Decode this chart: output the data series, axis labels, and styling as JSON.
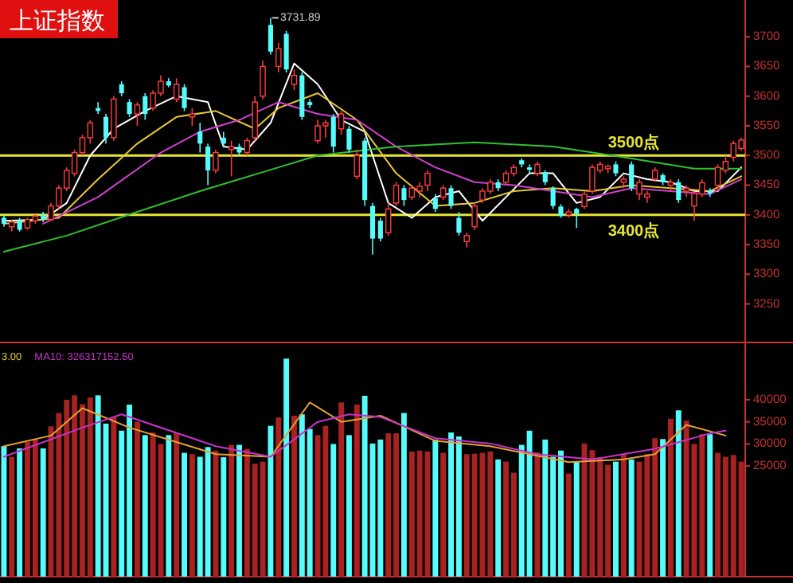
{
  "chart_data": [
    {
      "type": "candlestick",
      "title": "上证指数",
      "categories": [
        null,
        null,
        null,
        null,
        null,
        null,
        null,
        null,
        null,
        null,
        null,
        null,
        null,
        null,
        null,
        null,
        null,
        null,
        null,
        null,
        null,
        null,
        null,
        null,
        null,
        null,
        null,
        null,
        null,
        null,
        null,
        null,
        null,
        null,
        null,
        null,
        null,
        null,
        null,
        null,
        null,
        null,
        null,
        null,
        null,
        null,
        null,
        null,
        null,
        null,
        null,
        null,
        null,
        null,
        null,
        null,
        null,
        null,
        null,
        null,
        null,
        null,
        null,
        null,
        null,
        null,
        null,
        null,
        null,
        null,
        null,
        null,
        null,
        null,
        null,
        null,
        null,
        null,
        null,
        null,
        null,
        null,
        null,
        null,
        null,
        null,
        null,
        null,
        null,
        null,
        null,
        null,
        null,
        null,
        null
      ],
      "ohlc": [
        [
          3395,
          3400,
          3380,
          3385
        ],
        [
          3380,
          3392,
          3372,
          3388
        ],
        [
          3390,
          3395,
          3372,
          3375
        ],
        [
          3378,
          3395,
          3375,
          3392
        ],
        [
          3390,
          3400,
          3385,
          3398
        ],
        [
          3400,
          3405,
          3388,
          3392
        ],
        [
          3392,
          3420,
          3390,
          3415
        ],
        [
          3415,
          3450,
          3410,
          3445
        ],
        [
          3445,
          3480,
          3440,
          3475
        ],
        [
          3470,
          3510,
          3465,
          3505
        ],
        [
          3505,
          3535,
          3500,
          3530
        ],
        [
          3530,
          3560,
          3520,
          3555
        ],
        [
          3580,
          3590,
          3570,
          3575
        ],
        [
          3565,
          3570,
          3520,
          3530
        ],
        [
          3530,
          3600,
          3525,
          3595
        ],
        [
          3620,
          3625,
          3600,
          3605
        ],
        [
          3590,
          3595,
          3565,
          3570
        ],
        [
          3570,
          3590,
          3550,
          3585
        ],
        [
          3600,
          3605,
          3560,
          3570
        ],
        [
          3580,
          3610,
          3575,
          3605
        ],
        [
          3605,
          3635,
          3600,
          3625
        ],
        [
          3625,
          3630,
          3615,
          3618
        ],
        [
          3595,
          3630,
          3590,
          3620
        ],
        [
          3615,
          3620,
          3575,
          3580
        ],
        [
          3565,
          3580,
          3550,
          3570
        ],
        [
          3540,
          3555,
          3505,
          3520
        ],
        [
          3515,
          3520,
          3450,
          3475
        ],
        [
          3475,
          3510,
          3470,
          3505
        ],
        [
          3530,
          3540,
          3515,
          3520
        ],
        [
          3510,
          3525,
          3465,
          3515
        ],
        [
          3515,
          3520,
          3500,
          3505
        ],
        [
          3505,
          3530,
          3500,
          3525
        ],
        [
          3530,
          3600,
          3525,
          3590
        ],
        [
          3600,
          3660,
          3595,
          3650
        ],
        [
          3720,
          3731.89,
          3670,
          3675
        ],
        [
          3650,
          3690,
          3640,
          3680
        ],
        [
          3705,
          3710,
          3640,
          3645
        ],
        [
          3620,
          3645,
          3610,
          3635
        ],
        [
          3635,
          3640,
          3560,
          3565
        ],
        [
          3590,
          3595,
          3580,
          3585
        ],
        [
          3525,
          3560,
          3520,
          3550
        ],
        [
          3550,
          3560,
          3530,
          3555
        ],
        [
          3565,
          3570,
          3505,
          3515
        ],
        [
          3545,
          3575,
          3535,
          3570
        ],
        [
          3545,
          3550,
          3505,
          3510
        ],
        [
          3465,
          3510,
          3460,
          3500
        ],
        [
          3525,
          3530,
          3415,
          3425
        ],
        [
          3415,
          3420,
          3333,
          3360
        ],
        [
          3390,
          3395,
          3355,
          3360
        ],
        [
          3370,
          3420,
          3365,
          3410
        ],
        [
          3420,
          3455,
          3415,
          3450
        ],
        [
          3445,
          3450,
          3415,
          3425
        ],
        [
          3430,
          3450,
          3425,
          3445
        ],
        [
          3440,
          3455,
          3430,
          3448
        ],
        [
          3450,
          3475,
          3440,
          3470
        ],
        [
          3428,
          3435,
          3405,
          3410
        ],
        [
          3430,
          3450,
          3425,
          3445
        ],
        [
          3445,
          3450,
          3410,
          3415
        ],
        [
          3395,
          3405,
          3365,
          3370
        ],
        [
          3355,
          3370,
          3345,
          3365
        ],
        [
          3380,
          3420,
          3375,
          3415
        ],
        [
          3425,
          3445,
          3420,
          3440
        ],
        [
          3440,
          3460,
          3435,
          3455
        ],
        [
          3455,
          3460,
          3440,
          3445
        ],
        [
          3455,
          3475,
          3450,
          3470
        ],
        [
          3470,
          3485,
          3465,
          3480
        ],
        [
          3492,
          3495,
          3480,
          3485
        ],
        [
          3480,
          3485,
          3470,
          3476
        ],
        [
          3470,
          3490,
          3465,
          3485
        ],
        [
          3472,
          3475,
          3450,
          3455
        ],
        [
          3445,
          3448,
          3410,
          3415
        ],
        [
          3414,
          3418,
          3395,
          3398
        ],
        [
          3400,
          3410,
          3395,
          3405
        ],
        [
          3410,
          3412,
          3378,
          3402
        ],
        [
          3414,
          3440,
          3410,
          3435
        ],
        [
          3440,
          3485,
          3435,
          3480
        ],
        [
          3475,
          3490,
          3470,
          3485
        ],
        [
          3478,
          3485,
          3470,
          3482
        ],
        [
          3485,
          3490,
          3465,
          3470
        ],
        [
          3455,
          3465,
          3445,
          3460
        ],
        [
          3485,
          3490,
          3440,
          3445
        ],
        [
          3435,
          3460,
          3425,
          3455
        ],
        [
          3430,
          3440,
          3420,
          3435
        ],
        [
          3460,
          3480,
          3455,
          3475
        ],
        [
          3467,
          3470,
          3450,
          3455
        ],
        [
          3450,
          3460,
          3440,
          3455
        ],
        [
          3455,
          3460,
          3420,
          3425
        ],
        [
          3440,
          3450,
          3430,
          3445
        ],
        [
          3415,
          3440,
          3390,
          3436
        ],
        [
          3435,
          3460,
          3430,
          3454
        ],
        [
          3441,
          3445,
          3430,
          3436
        ],
        [
          3450,
          3485,
          3440,
          3480
        ],
        [
          3475,
          3500,
          3470,
          3490
        ],
        [
          3497,
          3525,
          3490,
          3520
        ],
        [
          3512,
          3530,
          3508,
          3526
        ]
      ],
      "series": [
        {
          "type": "line",
          "color": "#ffffff",
          "values": [
            3390,
            null,
            null,
            null,
            null,
            3392,
            null,
            null,
            3420,
            null,
            null,
            3500,
            null,
            null,
            3545,
            null,
            null,
            null,
            3575,
            null,
            null,
            null,
            3600,
            null,
            null,
            null,
            3590,
            null,
            3515,
            null,
            null,
            3510,
            null,
            null,
            3555,
            null,
            null,
            3655,
            null,
            null,
            3620,
            null,
            null,
            3560,
            null,
            null,
            3540,
            null,
            null,
            3420,
            null,
            null,
            3395,
            null,
            null,
            3430,
            null,
            null,
            3440,
            null,
            null,
            3390,
            null,
            null,
            3430,
            null,
            null,
            3470,
            null,
            null,
            3470,
            null,
            null,
            3420,
            null,
            null,
            3430,
            null,
            null,
            3470,
            null,
            null,
            3460,
            null,
            null,
            3455,
            null,
            null,
            3440,
            null,
            null,
            3440,
            null,
            null,
            3480
          ]
        },
        {
          "type": "line",
          "color": "#e6c832",
          "values": [
            3385,
            null,
            null,
            null,
            null,
            null,
            null,
            3395,
            null,
            null,
            null,
            null,
            3460,
            null,
            null,
            null,
            null,
            3520,
            null,
            null,
            null,
            null,
            3565,
            null,
            null,
            null,
            null,
            3575,
            null,
            null,
            null,
            null,
            3545,
            null,
            null,
            3580,
            null,
            null,
            null,
            null,
            3605,
            null,
            null,
            null,
            null,
            3560,
            null,
            null,
            null,
            null,
            3470,
            null,
            null,
            null,
            null,
            3415,
            null,
            null,
            null,
            null,
            3420,
            null,
            null,
            null,
            null,
            3440,
            null,
            null,
            null,
            null,
            3445,
            null,
            null,
            null,
            null,
            3440,
            null,
            null,
            null,
            null,
            3450,
            null,
            null,
            null,
            null,
            3445,
            null,
            null,
            null,
            null,
            3440,
            null,
            null,
            null,
            3465
          ]
        },
        {
          "type": "line",
          "color": "#d040d0",
          "values": [
            null,
            null,
            null,
            null,
            null,
            3385,
            null,
            null,
            null,
            null,
            null,
            null,
            3430,
            null,
            null,
            null,
            null,
            null,
            null,
            null,
            3505,
            null,
            null,
            null,
            null,
            3540,
            null,
            null,
            null,
            null,
            3560,
            null,
            null,
            null,
            null,
            3590,
            null,
            null,
            null,
            null,
            3570,
            null,
            null,
            null,
            null,
            3560,
            null,
            null,
            null,
            null,
            3515,
            null,
            null,
            null,
            null,
            3480,
            null,
            null,
            null,
            null,
            3455,
            null,
            null,
            null,
            null,
            3450,
            null,
            null,
            null,
            null,
            3440,
            null,
            null,
            null,
            null,
            3430,
            null,
            null,
            null,
            null,
            3445,
            null,
            null,
            null,
            null,
            3440,
            null,
            null,
            null,
            null,
            3435,
            null,
            null,
            null,
            3460
          ]
        },
        {
          "type": "line",
          "color": "#30c030",
          "values": [
            3338,
            null,
            null,
            null,
            null,
            null,
            null,
            null,
            3365,
            null,
            null,
            null,
            null,
            null,
            null,
            null,
            null,
            3405,
            null,
            null,
            null,
            null,
            null,
            null,
            null,
            3440,
            null,
            null,
            null,
            null,
            null,
            null,
            null,
            null,
            3476,
            null,
            null,
            null,
            null,
            null,
            3500,
            null,
            null,
            null,
            null,
            null,
            null,
            null,
            null,
            null,
            3515,
            null,
            null,
            null,
            null,
            null,
            null,
            null,
            null,
            null,
            3522,
            null,
            null,
            null,
            null,
            null,
            null,
            null,
            null,
            null,
            3515,
            null,
            null,
            null,
            null,
            null,
            null,
            null,
            null,
            null,
            3495,
            null,
            null,
            null,
            null,
            null,
            null,
            null,
            3478,
            null,
            null,
            null,
            null,
            null,
            3478
          ]
        }
      ],
      "ylim": [
        3185,
        3762
      ],
      "yticks": [
        3250,
        3300,
        3350,
        3400,
        3450,
        3500,
        3550,
        3600,
        3650,
        3700
      ],
      "ref_lines": [
        {
          "axis": "y",
          "value": 3500,
          "label": "3500点",
          "color": "#e6e632"
        },
        {
          "axis": "y",
          "value": 3400,
          "label": "3400点",
          "color": "#e6e632"
        }
      ],
      "annotations": [
        "3731.89"
      ]
    },
    {
      "type": "bar",
      "categories": [
        null,
        null,
        null,
        null,
        null,
        null,
        null,
        null,
        null,
        null,
        null,
        null,
        null,
        null,
        null,
        null,
        null,
        null,
        null,
        null,
        null,
        null,
        null,
        null,
        null,
        null,
        null,
        null,
        null,
        null,
        null,
        null,
        null,
        null,
        null,
        null,
        null,
        null,
        null,
        null,
        null,
        null,
        null,
        null,
        null,
        null,
        null,
        null,
        null,
        null,
        null,
        null,
        null,
        null,
        null,
        null,
        null,
        null,
        null,
        null,
        null,
        null,
        null,
        null,
        null,
        null,
        null,
        null,
        null,
        null,
        null,
        null,
        null,
        null,
        null,
        null,
        null,
        null,
        null,
        null,
        null,
        null,
        null,
        null,
        null,
        null,
        null,
        null,
        null,
        null,
        null,
        null,
        null,
        null,
        null
      ],
      "series": [
        {
          "color": "#a82222",
          "values": [
            null,
            27100,
            null,
            30500,
            31000,
            null,
            34000,
            37000,
            40000,
            41000,
            39000,
            40500,
            null,
            null,
            36100,
            null,
            null,
            35000,
            null,
            32600,
            30000,
            null,
            32600,
            null,
            27700,
            null,
            null,
            28500,
            null,
            29800,
            null,
            28900,
            25500,
            26000,
            null,
            36000,
            null,
            36400,
            null,
            null,
            32000,
            34100,
            null,
            39400,
            null,
            38900,
            null,
            null,
            null,
            32400,
            32400,
            null,
            28300,
            28500,
            28300,
            null,
            28000,
            null,
            null,
            27700,
            27800,
            28000,
            28300,
            null,
            26000,
            23500,
            null,
            null,
            28100,
            null,
            null,
            null,
            23300,
            null,
            30100,
            28600,
            27000,
            25300,
            null,
            27700,
            null,
            26000,
            27700,
            31300,
            null,
            35700,
            null,
            35300,
            30000,
            32200,
            null,
            28000,
            27100,
            27500,
            26000
          ]
        },
        {
          "color": "#54fcfc",
          "values": [
            29500,
            null,
            29000,
            null,
            null,
            29000,
            null,
            null,
            null,
            null,
            null,
            null,
            41000,
            34600,
            null,
            33000,
            38900,
            null,
            32000,
            null,
            null,
            32000,
            null,
            28000,
            null,
            27100,
            29300,
            null,
            27000,
            null,
            29800,
            null,
            null,
            null,
            34100,
            null,
            49300,
            null,
            36700,
            33400,
            null,
            null,
            30000,
            null,
            32000,
            null,
            40900,
            30100,
            31000,
            null,
            null,
            37000,
            null,
            null,
            null,
            31000,
            null,
            32600,
            31700,
            null,
            null,
            null,
            null,
            26500,
            null,
            null,
            29800,
            33000,
            null,
            31000,
            27100,
            28500,
            null,
            26000,
            null,
            null,
            null,
            null,
            26000,
            null,
            26500,
            null,
            null,
            null,
            31100,
            null,
            37600,
            null,
            null,
            null,
            32200,
            null,
            null,
            null,
            null
          ]
        },
        {
          "type": "line",
          "color": "#e6a032",
          "values": [
            29500,
            null,
            null,
            null,
            null,
            null,
            31900,
            null,
            null,
            null,
            38100,
            null,
            null,
            null,
            null,
            null,
            33700,
            null,
            null,
            null,
            null,
            null,
            null,
            null,
            null,
            null,
            null,
            27700,
            null,
            null,
            null,
            null,
            null,
            null,
            27100,
            null,
            null,
            null,
            null,
            39400,
            null,
            null,
            null,
            35000,
            null,
            null,
            null,
            null,
            36400,
            null,
            null,
            null,
            null,
            null,
            null,
            30700,
            null,
            null,
            null,
            null,
            null,
            null,
            29500,
            null,
            null,
            null,
            null,
            null,
            null,
            null,
            null,
            null,
            25900,
            null,
            null,
            null,
            null,
            null,
            null,
            26500,
            null,
            null,
            null,
            27700,
            null,
            null,
            null,
            34300,
            null,
            null,
            null,
            null,
            31900,
            null,
            null
          ]
        },
        {
          "type": "line",
          "color": "#c832c8",
          "values": [
            27100,
            null,
            null,
            null,
            null,
            null,
            null,
            null,
            null,
            null,
            33700,
            null,
            null,
            null,
            null,
            36700,
            null,
            null,
            null,
            null,
            null,
            null,
            null,
            null,
            null,
            null,
            null,
            29500,
            null,
            null,
            null,
            null,
            null,
            null,
            27100,
            null,
            null,
            null,
            null,
            null,
            35000,
            null,
            null,
            null,
            36700,
            null,
            null,
            null,
            36100,
            null,
            null,
            null,
            null,
            null,
            null,
            31300,
            null,
            null,
            null,
            null,
            null,
            null,
            30100,
            null,
            null,
            null,
            null,
            null,
            27700,
            null,
            null,
            null,
            null,
            null,
            null,
            26500,
            null,
            null,
            null,
            null,
            null,
            null,
            null,
            28900,
            null,
            null,
            null,
            null,
            null,
            null,
            32400,
            null,
            33000,
            null,
            null
          ]
        }
      ],
      "ylim": [
        0,
        52950
      ],
      "yticks": [
        25000,
        30000,
        35000,
        40000
      ],
      "annotations": [
        "3.00",
        "MA10: 326317152.50"
      ]
    }
  ]
}
